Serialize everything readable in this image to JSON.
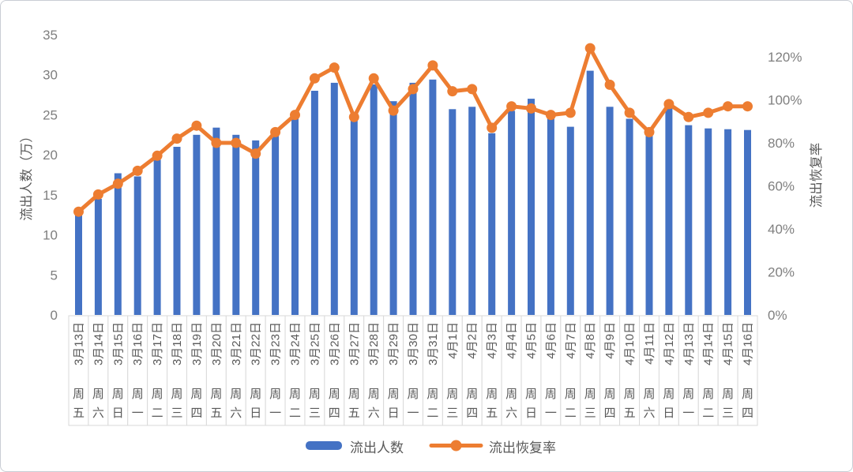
{
  "chart_data": {
    "type": "combo-bar-line",
    "categories": [
      "3月13日",
      "3月14日",
      "3月15日",
      "3月16日",
      "3月17日",
      "3月18日",
      "3月19日",
      "3月20日",
      "3月21日",
      "3月22日",
      "3月23日",
      "3月24日",
      "3月25日",
      "3月26日",
      "3月27日",
      "3月28日",
      "3月29日",
      "3月30日",
      "3月31日",
      "4月1日",
      "4月2日",
      "4月3日",
      "4月4日",
      "4月5日",
      "4月6日",
      "4月7日",
      "4月8日",
      "4月9日",
      "4月10日",
      "4月11日",
      "4月12日",
      "4月13日",
      "4月14日",
      "4月15日",
      "4月16日"
    ],
    "weekdays": [
      "周五",
      "周六",
      "周日",
      "周一",
      "周二",
      "周三",
      "周四",
      "周五",
      "周六",
      "周日",
      "周一",
      "周二",
      "周三",
      "周四",
      "周五",
      "周六",
      "周日",
      "周一",
      "周二",
      "周三",
      "周四",
      "周五",
      "周六",
      "周日",
      "周一",
      "周二",
      "周三",
      "周四",
      "周五",
      "周六",
      "周日",
      "周一",
      "周二",
      "周三",
      "周四"
    ],
    "series": [
      {
        "name": "流出人数",
        "type": "bar",
        "axis": "left",
        "color": "#4472C4",
        "values": [
          12.5,
          14.5,
          17.7,
          17.3,
          19.4,
          21.0,
          22.5,
          23.4,
          22.5,
          21.8,
          22.4,
          24.8,
          28.0,
          29.0,
          24.3,
          28.8,
          26.7,
          29.0,
          29.4,
          25.7,
          26.0,
          22.7,
          25.5,
          27.0,
          24.6,
          23.5,
          30.5,
          26.0,
          24.5,
          22.4,
          25.9,
          23.7,
          23.3,
          23.2,
          23.1
        ]
      },
      {
        "name": "流出恢复率",
        "type": "line",
        "axis": "right",
        "color": "#ED7D31",
        "values_pct": [
          48,
          56,
          61,
          67,
          74,
          82,
          88,
          80,
          80,
          75,
          85,
          93,
          110,
          115,
          92,
          110,
          95,
          105,
          116,
          104,
          105,
          87,
          97,
          96,
          93,
          94,
          124,
          107,
          94,
          85,
          98,
          92,
          94,
          97,
          97
        ]
      }
    ],
    "left_axis": {
      "title": "流出人数（万）",
      "min": 0,
      "max": 35,
      "ticks": [
        0,
        5,
        10,
        15,
        20,
        25,
        30,
        35
      ]
    },
    "right_axis": {
      "title": "流出恢复率",
      "min_pct": 0,
      "max_pct": 120,
      "ticks_pct": [
        0,
        20,
        40,
        60,
        80,
        100,
        120
      ]
    },
    "legend": {
      "position": "bottom",
      "items": [
        "流出人数",
        "流出恢复率"
      ]
    },
    "grid": "off",
    "title": ""
  },
  "colors": {
    "bar": "#4472C4",
    "line": "#ED7D31",
    "tick_text": "#7f7f7f",
    "label_text": "#595959",
    "cell_border": "#d9d9d9",
    "axis_line": "#bfbfbf",
    "frame_border": "#c9cdd4",
    "background": "#ffffff"
  }
}
